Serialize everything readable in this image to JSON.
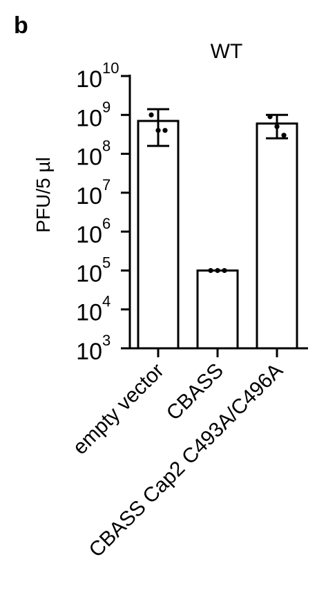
{
  "panel_label": "b",
  "chart_data": {
    "type": "bar",
    "title": "WT",
    "ylabel": "PFU/5 µl",
    "xlabel": "",
    "yscale": "log10",
    "ylim": [
      1000,
      10000000000
    ],
    "ytick_exponents": [
      3,
      4,
      5,
      6,
      7,
      8,
      9,
      10
    ],
    "ytick_base": "10",
    "categories": [
      "empty vector",
      "CBASS",
      "CBASS Cap2 C493A/C496A"
    ],
    "values": [
      700000000,
      100000,
      600000000
    ],
    "error_low": [
      160000000,
      100000,
      250000000
    ],
    "error_high": [
      1400000000,
      100000,
      1000000000
    ],
    "replicates": [
      [
        1000000000,
        400000000,
        400000000
      ],
      [
        100000,
        100000,
        100000
      ],
      [
        900000000,
        500000000,
        300000000
      ]
    ],
    "bar_fill": "#ffffff",
    "bar_stroke": "#000000",
    "grid": false,
    "legend": "none"
  }
}
